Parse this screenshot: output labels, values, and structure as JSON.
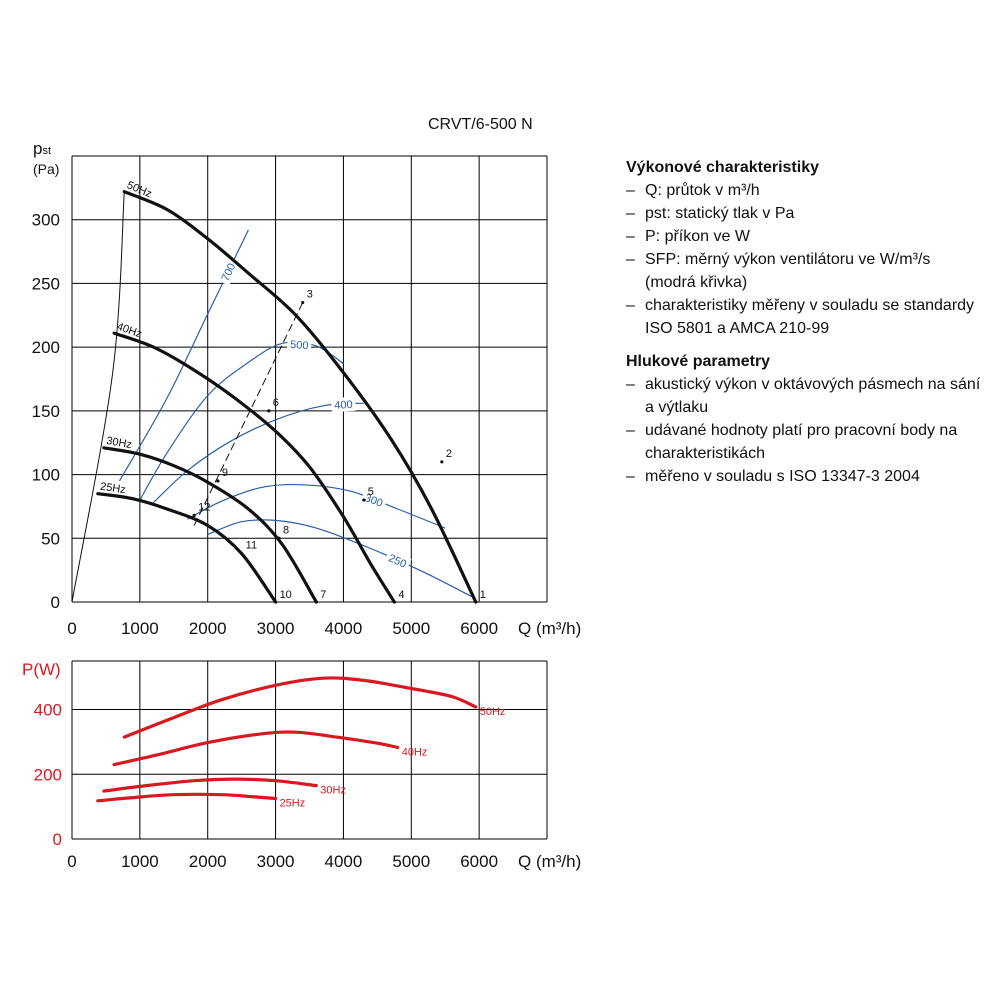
{
  "model": "CRVT/6-500 N",
  "legend": {
    "section1_title": "Výkonové charakteristiky",
    "section1_items": [
      "Q: průtok v m³/h",
      "pst: statický tlak v Pa",
      "P: příkon ve W",
      "SFP: měrný výkon ventilátoru ve W/m³/s (modrá křivka)",
      "charakteristiky měřeny v souladu se standardy ISO 5801 a AMCA 210-99"
    ],
    "section2_title": "Hlukové parametry",
    "section2_items": [
      "akustický výkon v oktávových pásmech na sání a výtlaku",
      "udávané hodnoty platí pro pracovní body na charakteristikách",
      "měřeno v souladu s ISO 13347-3 2004"
    ]
  },
  "colors": {
    "curve": "#111111",
    "sfp": "#2b5ea8",
    "power": "#d71920",
    "grid": "#000000"
  },
  "chart_data": [
    {
      "type": "line",
      "ylabel_main": "p",
      "ylabel_sub": "st",
      "ylabel_unit": "(Pa)",
      "xlabel": "Q (m³/h)",
      "xlim": [
        0,
        7000
      ],
      "ylim": [
        0,
        350
      ],
      "xticks": [
        0,
        1000,
        2000,
        3000,
        4000,
        5000,
        6000
      ],
      "yticks": [
        0,
        50,
        100,
        150,
        200,
        250,
        300
      ],
      "series": [
        {
          "name": "50Hz",
          "points": [
            [
              770,
              322
            ],
            [
              1400,
              308
            ],
            [
              2000,
              285
            ],
            [
              2600,
              258
            ],
            [
              3300,
              225
            ],
            [
              4000,
              180
            ],
            [
              4700,
              128
            ],
            [
              5300,
              73
            ],
            [
              5950,
              0
            ]
          ]
        },
        {
          "name": "40Hz",
          "points": [
            [
              620,
              211
            ],
            [
              1200,
              200
            ],
            [
              1800,
              182
            ],
            [
              2400,
              160
            ],
            [
              3000,
              134
            ],
            [
              3500,
              106
            ],
            [
              4000,
              67
            ],
            [
              4400,
              30
            ],
            [
              4750,
              0
            ]
          ]
        },
        {
          "name": "30Hz",
          "points": [
            [
              470,
              121
            ],
            [
              1000,
              116
            ],
            [
              1500,
              107
            ],
            [
              2000,
              94
            ],
            [
              2600,
              73
            ],
            [
              3100,
              45
            ],
            [
              3600,
              0
            ]
          ]
        },
        {
          "name": "25Hz",
          "points": [
            [
              380,
              85
            ],
            [
              900,
              81
            ],
            [
              1400,
              73
            ],
            [
              2000,
              60
            ],
            [
              2500,
              38
            ],
            [
              3000,
              0
            ]
          ]
        }
      ],
      "sfp_series": [
        {
          "name": "700",
          "points": [
            [
              700,
              95
            ],
            [
              1400,
              160
            ],
            [
              2000,
              226
            ],
            [
              2600,
              292
            ]
          ]
        },
        {
          "name": "500",
          "points": [
            [
              1000,
              80
            ],
            [
              1400,
              117
            ],
            [
              2000,
              162
            ],
            [
              2600,
              188
            ],
            [
              3100,
              203
            ],
            [
              3600,
              201
            ],
            [
              4000,
              187
            ]
          ]
        },
        {
          "name": "400",
          "points": [
            [
              1200,
              78
            ],
            [
              1700,
              103
            ],
            [
              2300,
              125
            ],
            [
              3000,
              143
            ],
            [
              3700,
              154
            ],
            [
              4300,
              156
            ]
          ]
        },
        {
          "name": "300",
          "points": [
            [
              1700,
              65
            ],
            [
              2200,
              79
            ],
            [
              2800,
              90
            ],
            [
              3400,
              92
            ],
            [
              4100,
              87
            ],
            [
              4800,
              73
            ],
            [
              5500,
              58
            ]
          ]
        },
        {
          "name": "250",
          "points": [
            [
              2000,
              53
            ],
            [
              2500,
              63
            ],
            [
              3000,
              64
            ],
            [
              3600,
              58
            ],
            [
              4400,
              42
            ],
            [
              5200,
              23
            ],
            [
              5900,
              4
            ]
          ]
        }
      ],
      "system_line": {
        "points": [
          [
            1800,
            60
          ],
          [
            3400,
            235
          ]
        ]
      },
      "surge_line": {
        "points": [
          [
            0,
            0
          ],
          [
            600,
            180
          ],
          [
            770,
            322
          ]
        ]
      },
      "operating_points": [
        {
          "label": "1",
          "q": 5950,
          "p": 0
        },
        {
          "label": "2",
          "q": 5450,
          "p": 110
        },
        {
          "label": "3",
          "q": 3400,
          "p": 235
        },
        {
          "label": "4",
          "q": 4750,
          "p": 0
        },
        {
          "label": "5",
          "q": 4300,
          "p": 80
        },
        {
          "label": "6",
          "q": 2900,
          "p": 150
        },
        {
          "label": "7",
          "q": 3600,
          "p": 0
        },
        {
          "label": "8",
          "q": 3050,
          "p": 50
        },
        {
          "label": "9",
          "q": 2150,
          "p": 95
        },
        {
          "label": "10",
          "q": 3000,
          "p": 0
        },
        {
          "label": "11",
          "q": 2500,
          "p": 38
        },
        {
          "label": "12",
          "q": 1800,
          "p": 68
        }
      ]
    },
    {
      "type": "line",
      "ylabel": "P(W)",
      "xlabel": "Q (m³/h)",
      "xlim": [
        0,
        7000
      ],
      "ylim": [
        0,
        550
      ],
      "xticks": [
        0,
        1000,
        2000,
        3000,
        4000,
        5000,
        6000
      ],
      "yticks": [
        0,
        200,
        400
      ],
      "series": [
        {
          "name": "50Hz",
          "points": [
            [
              770,
              315
            ],
            [
              1500,
              375
            ],
            [
              2200,
              430
            ],
            [
              3000,
              475
            ],
            [
              3700,
              497
            ],
            [
              4300,
              490
            ],
            [
              5000,
              465
            ],
            [
              5600,
              440
            ],
            [
              5950,
              408
            ]
          ]
        },
        {
          "name": "40Hz",
          "points": [
            [
              620,
              230
            ],
            [
              1300,
              262
            ],
            [
              2000,
              298
            ],
            [
              2800,
              325
            ],
            [
              3300,
              330
            ],
            [
              3900,
              315
            ],
            [
              4500,
              296
            ],
            [
              4800,
              283
            ]
          ]
        },
        {
          "name": "30Hz",
          "points": [
            [
              470,
              148
            ],
            [
              1100,
              165
            ],
            [
              1800,
              180
            ],
            [
              2400,
              185
            ],
            [
              3000,
              180
            ],
            [
              3600,
              165
            ]
          ]
        },
        {
          "name": "25Hz",
          "points": [
            [
              380,
              118
            ],
            [
              900,
              128
            ],
            [
              1500,
              137
            ],
            [
              2200,
              137
            ],
            [
              2700,
              130
            ],
            [
              3000,
              125
            ]
          ]
        }
      ]
    }
  ]
}
